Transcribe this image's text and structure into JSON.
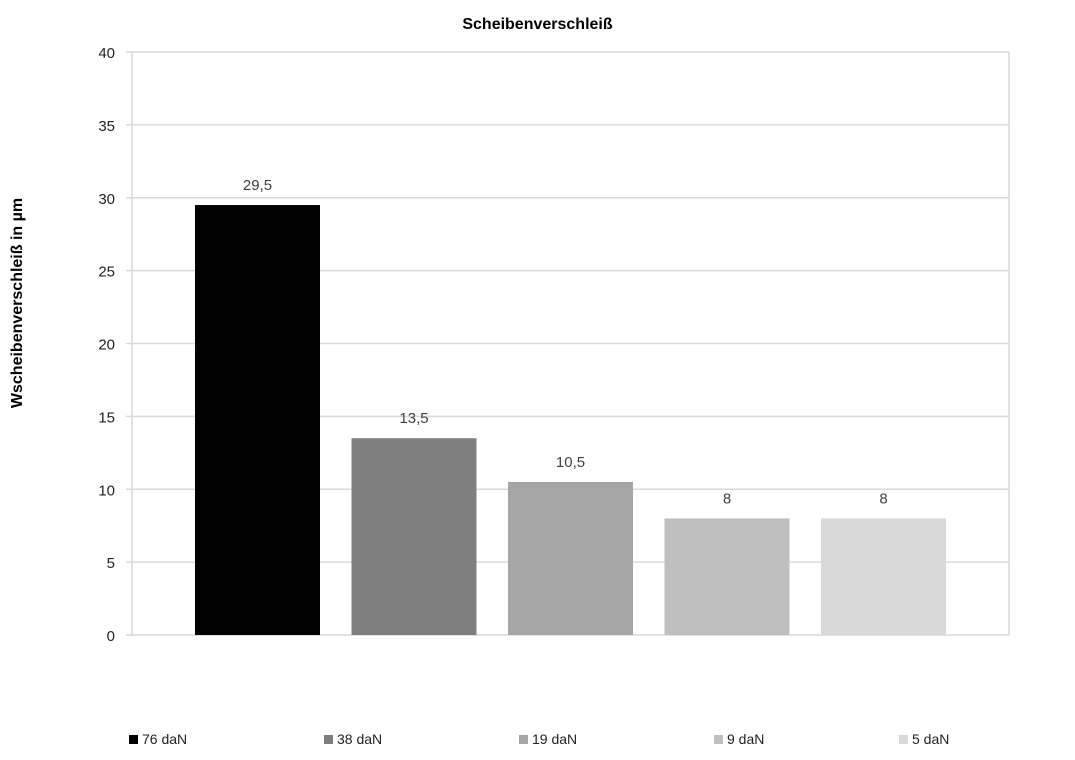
{
  "chart_data": {
    "type": "bar",
    "title": "Scheibenverschleiß",
    "xlabel": "",
    "ylabel": "Wscheibenverschleiß  in µm",
    "ylim": [
      0,
      40
    ],
    "yticks": [
      "0",
      "5",
      "10",
      "15",
      "20",
      "25",
      "30",
      "35",
      "40"
    ],
    "grid": true,
    "legend_placement": "bottom",
    "series": [
      {
        "name": "76 daN",
        "value": 29.5,
        "label": "29,5",
        "color": "#000000"
      },
      {
        "name": "38 daN",
        "value": 13.5,
        "label": "13,5",
        "color": "#7f7f7f"
      },
      {
        "name": "19 daN",
        "value": 10.5,
        "label": "10,5",
        "color": "#a5a5a5"
      },
      {
        "name": "9 daN",
        "value": 8,
        "label": "8",
        "color": "#bfbfbf"
      },
      {
        "name": "5 daN",
        "value": 8,
        "label": "8",
        "color": "#d9d9d9"
      }
    ]
  }
}
